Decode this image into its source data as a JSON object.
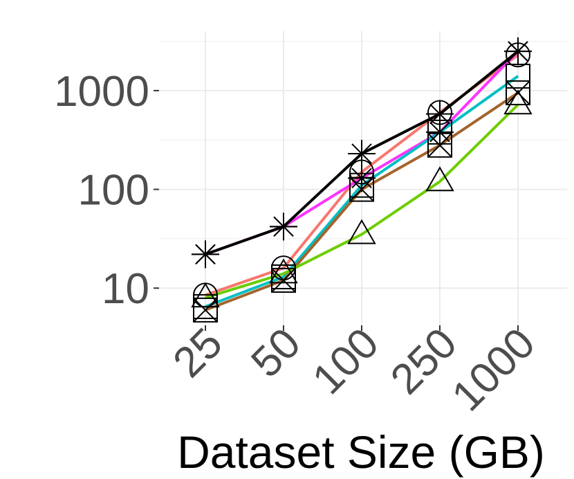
{
  "chart_data": {
    "type": "line",
    "xlabel": "Dataset Size (GB)",
    "ylabel": "",
    "title": "",
    "categories": [
      "25",
      "50",
      "100",
      "250",
      "1000"
    ],
    "y_scale": "log10",
    "ylim": [
      4.2,
      4000
    ],
    "y_ticks": [
      10,
      100,
      1000
    ],
    "y_tick_labels": [
      "10",
      "100",
      "1000"
    ],
    "grid": true,
    "legend": "none",
    "series": [
      {
        "color": "#f8766d",
        "marker": "circle",
        "values": [
          8.5,
          16,
          150,
          600,
          2300
        ]
      },
      {
        "color": "#ff33ff",
        "marker": "asterisk",
        "values": [
          22,
          42,
          130,
          380,
          2500
        ]
      },
      {
        "color": "#000000",
        "marker": "asterisk",
        "values": [
          22,
          42,
          230,
          580,
          2500
        ]
      },
      {
        "color": "#00bfc4",
        "marker": "square",
        "values": [
          6.5,
          13,
          110,
          380,
          1400
        ]
      },
      {
        "color": "#a3652c",
        "marker": "square-x",
        "values": [
          6.0,
          12,
          100,
          280,
          950
        ]
      },
      {
        "color": "#6ccd00",
        "marker": "triangle",
        "values": [
          8.0,
          14,
          35,
          120,
          720
        ]
      }
    ]
  }
}
